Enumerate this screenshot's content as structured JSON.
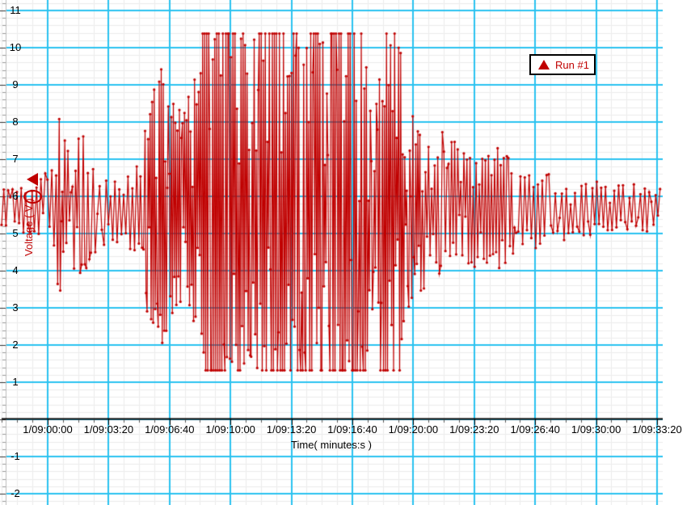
{
  "chart_data": {
    "type": "line",
    "title": "",
    "xlabel": "Time( minutes:s )",
    "ylabel": "Voltage ( V )",
    "series": [
      {
        "name": "Run #1",
        "color": "#c00000"
      }
    ],
    "x_tick_labels": [
      "1/09:00:00",
      "1/09:03:20",
      "1/09:06:40",
      "1/09:10:00",
      "1/09:13:20",
      "1/09:16:40",
      "1/09:20:00",
      "1/09:23:20",
      "1/09:26:40",
      "1/09:30:00",
      "1/09:33:20"
    ],
    "x_tick_seconds": [
      0,
      200,
      400,
      600,
      800,
      1000,
      1200,
      1400,
      1600,
      1800,
      2000
    ],
    "y_tick_values": [
      11,
      10,
      9,
      8,
      7,
      6,
      5,
      4,
      3,
      2,
      1,
      -1,
      -2
    ],
    "ylim": [
      -2.3,
      11.2
    ],
    "grid": "on",
    "legend_position": "top-right",
    "baseline_volts": 5.66,
    "clip_min_volts": 1.32,
    "clip_max_volts": 10.38,
    "time_range_s": [
      -150,
      2013
    ],
    "envelope_amplitude": [
      [
        -149,
        0.5
      ],
      [
        -103,
        0.55
      ],
      [
        -64,
        0.75
      ],
      [
        -29,
        0.65
      ],
      [
        -3,
        0.75
      ],
      [
        19,
        1.1
      ],
      [
        40,
        2.2
      ],
      [
        56,
        1.9
      ],
      [
        77,
        1.5
      ],
      [
        101,
        1.75
      ],
      [
        125,
        1.8
      ],
      [
        141,
        1.2
      ],
      [
        162,
        0.95
      ],
      [
        194,
        0.9
      ],
      [
        228,
        0.85
      ],
      [
        263,
        0.95
      ],
      [
        289,
        1.0
      ],
      [
        310,
        1.8
      ],
      [
        337,
        2.8
      ],
      [
        363,
        3.6
      ],
      [
        387,
        3.1
      ],
      [
        414,
        2.7
      ],
      [
        440,
        2.45
      ],
      [
        464,
        2.7
      ],
      [
        488,
        3.4
      ],
      [
        507,
        5.5
      ],
      [
        634,
        5.5
      ],
      [
        653,
        3.4
      ],
      [
        671,
        5.5
      ],
      [
        772,
        5.5
      ],
      [
        790,
        2.9
      ],
      [
        806,
        5.5
      ],
      [
        894,
        5.5
      ],
      [
        915,
        3.0
      ],
      [
        936,
        5.5
      ],
      [
        1032,
        5.5
      ],
      [
        1053,
        2.8
      ],
      [
        1074,
        2.6
      ],
      [
        1093,
        5.2
      ],
      [
        1117,
        5.5
      ],
      [
        1149,
        5.5
      ],
      [
        1170,
        2.6
      ],
      [
        1196,
        2.2
      ],
      [
        1228,
        1.95
      ],
      [
        1265,
        1.85
      ],
      [
        1297,
        1.7
      ],
      [
        1329,
        1.55
      ],
      [
        1361,
        1.4
      ],
      [
        1395,
        1.3
      ],
      [
        1430,
        1.3
      ],
      [
        1462,
        1.45
      ],
      [
        1493,
        1.35
      ],
      [
        1528,
        1.25
      ],
      [
        1562,
        1.05
      ],
      [
        1594,
        0.9
      ],
      [
        1634,
        0.8
      ],
      [
        1674,
        0.75
      ],
      [
        1714,
        0.7
      ],
      [
        1753,
        0.68
      ],
      [
        1801,
        0.62
      ],
      [
        1846,
        0.58
      ],
      [
        1899,
        0.55
      ],
      [
        1952,
        0.5
      ],
      [
        2013,
        0.48
      ]
    ],
    "colors": {
      "series": "#c00000",
      "grid_major": "#2ac2f0",
      "grid_minor": "#ececec",
      "axis": "#000000",
      "background": "#ffffff",
      "text": "#000000"
    }
  },
  "legend": {
    "label": "Run #1"
  },
  "annotations": {
    "left_axis_marker": "left-pointing red triangle at ~6.45 V",
    "circle_highlight": "red ellipse around data near 6.0 V at start"
  }
}
